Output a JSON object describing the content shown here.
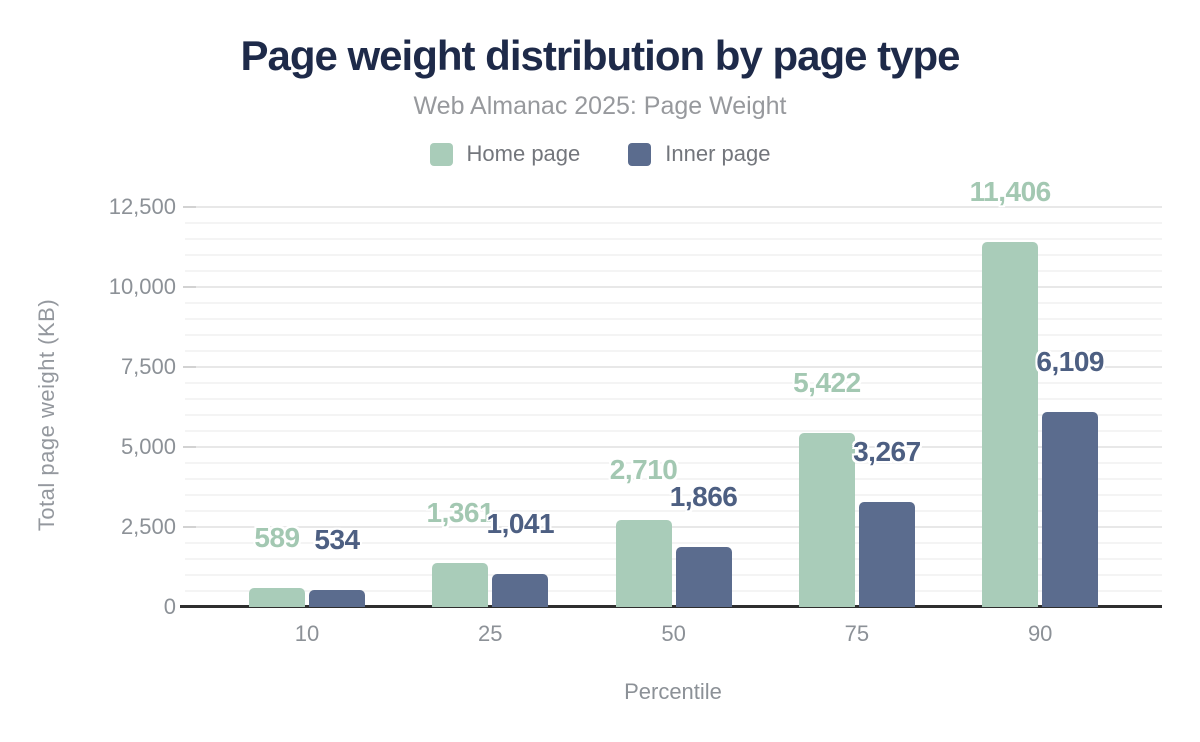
{
  "chart_data": {
    "type": "bar",
    "title": "Page weight distribution by page type",
    "subtitle": "Web Almanac 2025: Page Weight",
    "categories": [
      "10",
      "25",
      "50",
      "75",
      "90"
    ],
    "series": [
      {
        "name": "Home page",
        "color": "#a9ccb9",
        "label_color": "#a3c8b2",
        "values": [
          589,
          1361,
          2710,
          5422,
          11406
        ],
        "value_labels": [
          "589",
          "1,361",
          "2,710",
          "5,422",
          "11,406"
        ]
      },
      {
        "name": "Inner page",
        "color": "#5b6c8e",
        "label_color": "#4d5f82",
        "values": [
          534,
          1041,
          1866,
          3267,
          6109
        ],
        "value_labels": [
          "534",
          "1,041",
          "1,866",
          "3,267",
          "6,109"
        ]
      }
    ],
    "xlabel": "Percentile",
    "ylabel": "Total page weight (KB)",
    "ylim": [
      0,
      12500
    ],
    "yticks": [
      0,
      2500,
      5000,
      7500,
      10000,
      12500
    ],
    "ytick_labels": [
      "0",
      "2,500",
      "5,000",
      "7,500",
      "10,000",
      "12,500"
    ],
    "minor_tick_step": 500,
    "grid": true,
    "legend_position": "top"
  },
  "colors": {
    "title": "#1e2a49",
    "subtitle": "#97999d",
    "axis_line": "#2e2e2e",
    "tick_text": "#8c9197",
    "grid_major": "#e8e8e8",
    "grid_minor": "#f4f4f4",
    "background": "#ffffff"
  }
}
